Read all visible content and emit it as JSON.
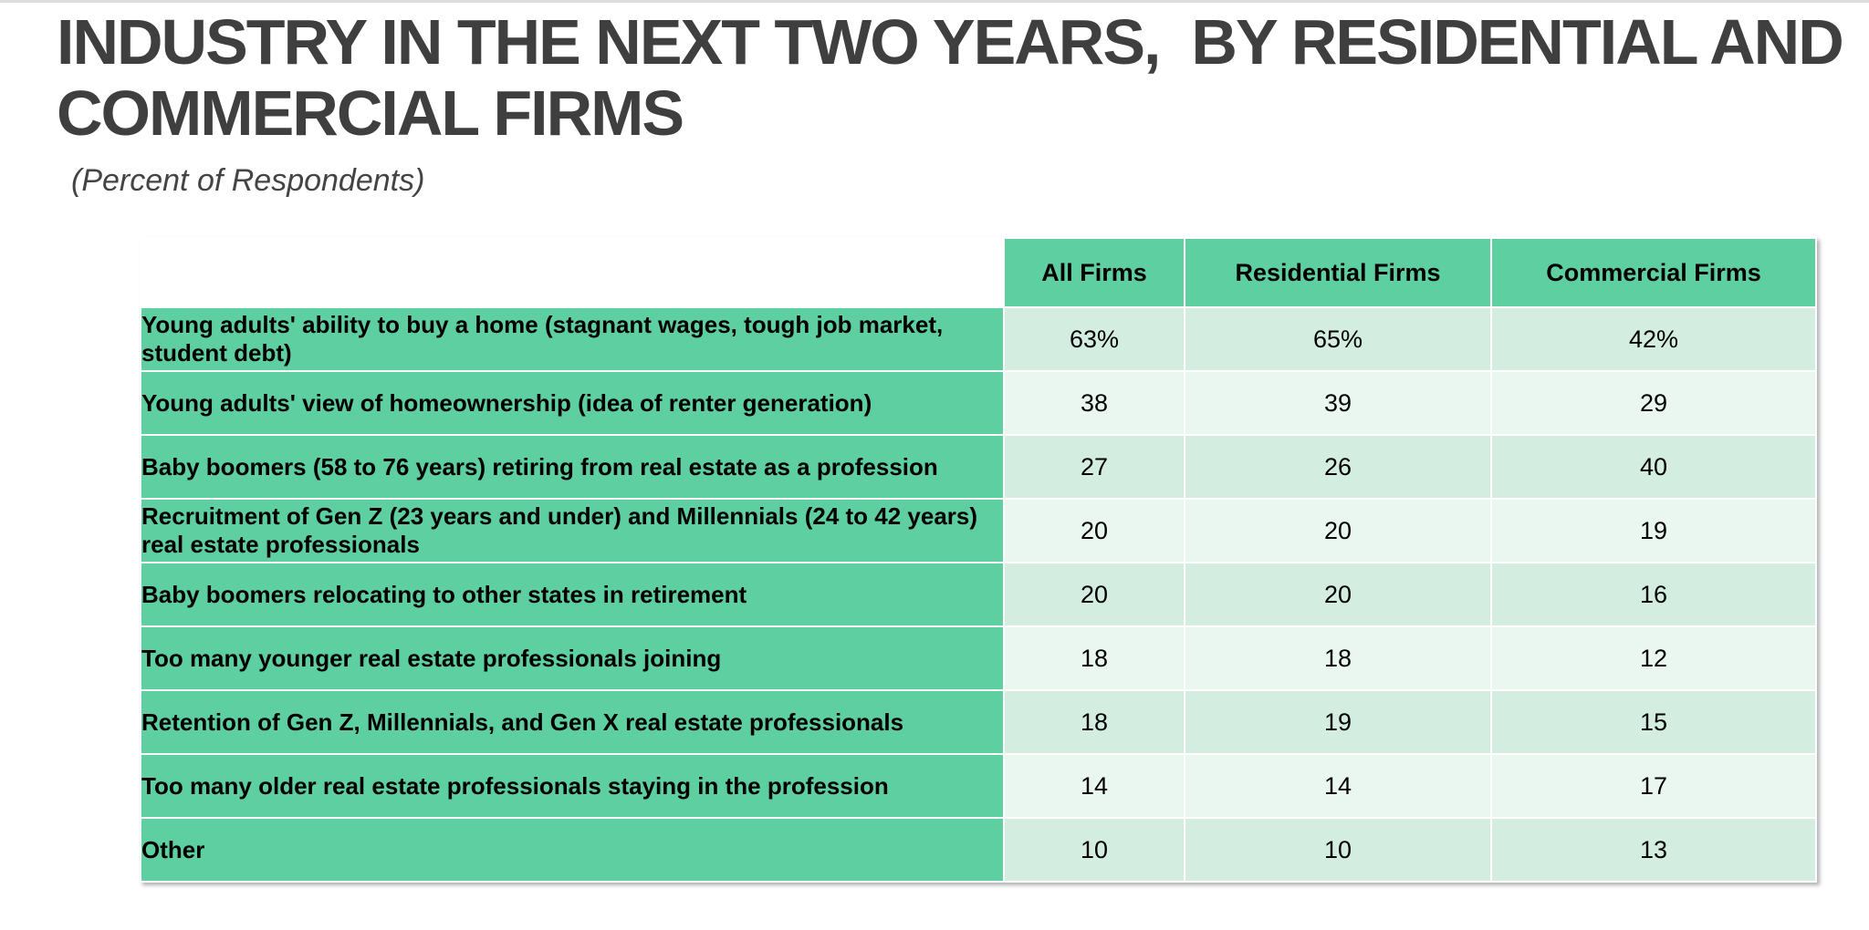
{
  "header": {
    "title": "INDUSTRY IN THE NEXT TWO YEARS,  BY RESIDENTIAL AND COMMERCIAL FIRMS",
    "subtitle": "(Percent of Respondents)"
  },
  "table": {
    "columns": [
      "All Firms",
      "Residential Firms",
      "Commercial Firms"
    ],
    "rows": [
      {
        "label": "Young adults' ability to buy a home (stagnant wages, tough job market, student debt)",
        "cells": [
          "63%",
          "65%",
          "42%"
        ]
      },
      {
        "label": "Young adults' view of homeownership (idea of renter generation)",
        "cells": [
          "38",
          "39",
          "29"
        ]
      },
      {
        "label": "Baby boomers (58 to 76 years) retiring from real estate as a profession",
        "cells": [
          "27",
          "26",
          "40"
        ]
      },
      {
        "label": "Recruitment of Gen Z (23 years and under) and Millennials (24 to 42 years) real estate professionals",
        "cells": [
          "20",
          "20",
          "19"
        ]
      },
      {
        "label": "Baby boomers relocating to other states in retirement",
        "cells": [
          "20",
          "20",
          "16"
        ]
      },
      {
        "label": "Too many younger real estate professionals joining",
        "cells": [
          "18",
          "18",
          "12"
        ]
      },
      {
        "label": "Retention of Gen Z, Millennials, and Gen X real estate professionals",
        "cells": [
          "18",
          "19",
          "15"
        ]
      },
      {
        "label": "Too many older real estate professionals staying in the profession",
        "cells": [
          "14",
          "14",
          "17"
        ]
      },
      {
        "label": "Other",
        "cells": [
          "10",
          "10",
          "13"
        ]
      }
    ]
  }
}
